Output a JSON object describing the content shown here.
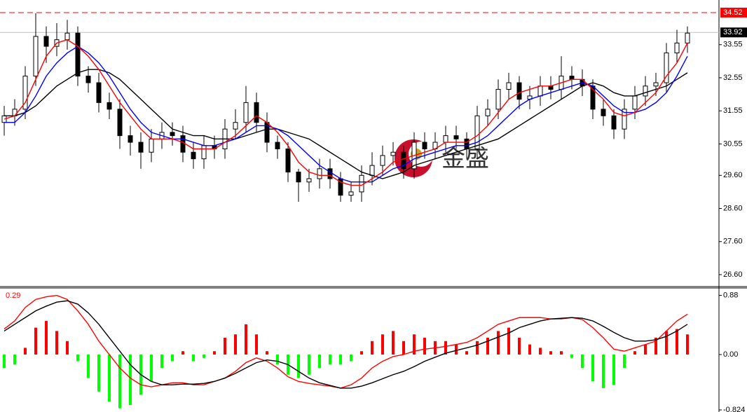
{
  "chart_data": [
    {
      "type": "candlestick",
      "watermark": "金盛",
      "up_color": "#ffffff",
      "down_color": "#000000",
      "outline_color": "#000000",
      "open": [
        31.2,
        31.4,
        31.6,
        32.6,
        33.8,
        33.5,
        33.7,
        33.9,
        32.6,
        32.4,
        31.8,
        31.6,
        30.8,
        30.6,
        30.3,
        30.7,
        30.9,
        30.8,
        30.3,
        30.1,
        30.5,
        30.4,
        31.0,
        31.2,
        31.8,
        31.2,
        30.6,
        30.4,
        29.7,
        29.4,
        29.5,
        29.8,
        29.5,
        29.0,
        29.1,
        29.6,
        29.9,
        30.2,
        30.3,
        29.8,
        30.6,
        30.4,
        30.6,
        30.8,
        30.7,
        30.4,
        31.4,
        31.6,
        32.2,
        32.4,
        31.9,
        32.0,
        32.3,
        32.2,
        32.6,
        32.5,
        32.3,
        31.6,
        31.4,
        31.0,
        31.6,
        32.0,
        32.3,
        32.4,
        33.3,
        33.6
      ],
      "high": [
        31.7,
        31.9,
        32.9,
        34.5,
        34.1,
        34.2,
        34.3,
        34.1,
        32.9,
        32.7,
        32.1,
        31.9,
        31.1,
        30.9,
        31.0,
        31.2,
        31.2,
        31.1,
        30.6,
        30.8,
        30.8,
        31.3,
        31.6,
        32.3,
        32.1,
        31.5,
        30.8,
        30.6,
        29.8,
        29.8,
        30.1,
        30.1,
        29.7,
        29.4,
        29.9,
        30.3,
        30.5,
        30.6,
        30.5,
        30.9,
        30.9,
        30.9,
        31.1,
        31.1,
        30.9,
        31.7,
        31.9,
        32.5,
        32.7,
        32.6,
        32.3,
        32.6,
        32.6,
        33.2,
        32.9,
        32.8,
        32.5,
        31.9,
        31.6,
        31.9,
        32.3,
        32.6,
        32.7,
        33.6,
        34.0,
        34.1
      ],
      "low": [
        30.8,
        31.1,
        31.3,
        32.3,
        33.0,
        33.2,
        33.4,
        32.3,
        32.1,
        31.5,
        31.3,
        30.4,
        30.2,
        29.8,
        30.0,
        30.4,
        30.5,
        30.0,
        29.8,
        29.8,
        30.1,
        30.1,
        30.7,
        30.9,
        30.9,
        30.3,
        30.1,
        29.4,
        28.8,
        29.1,
        29.2,
        29.2,
        28.8,
        28.8,
        28.8,
        29.3,
        29.6,
        29.9,
        29.5,
        29.5,
        30.1,
        30.1,
        30.3,
        30.4,
        30.1,
        30.1,
        31.1,
        31.3,
        31.9,
        31.6,
        31.6,
        31.7,
        31.9,
        31.9,
        32.2,
        32.0,
        31.3,
        31.1,
        30.7,
        30.7,
        31.3,
        31.7,
        32.0,
        32.1,
        33.0,
        33.3
      ],
      "close": [
        31.4,
        31.6,
        32.6,
        33.8,
        33.5,
        33.7,
        33.9,
        32.6,
        32.4,
        31.8,
        31.6,
        30.8,
        30.6,
        30.3,
        30.7,
        30.9,
        30.8,
        30.3,
        30.1,
        30.5,
        30.4,
        31.0,
        31.2,
        31.8,
        31.2,
        30.6,
        30.4,
        29.7,
        29.4,
        29.5,
        29.8,
        29.5,
        29.0,
        29.1,
        29.6,
        29.9,
        30.2,
        30.3,
        29.8,
        30.6,
        30.4,
        30.6,
        30.8,
        30.7,
        30.4,
        31.4,
        31.6,
        32.2,
        32.4,
        31.9,
        32.0,
        32.3,
        32.2,
        32.6,
        32.5,
        32.3,
        31.6,
        31.4,
        31.0,
        31.6,
        32.0,
        32.3,
        32.4,
        33.3,
        33.6,
        33.9
      ],
      "lines": [
        {
          "color": "#000000",
          "values": [
            31.4,
            31.4,
            31.5,
            31.7,
            32.0,
            32.3,
            32.5,
            32.7,
            32.8,
            32.8,
            32.7,
            32.5,
            32.2,
            31.9,
            31.6,
            31.3,
            31.0,
            30.9,
            30.8,
            30.8,
            30.7,
            30.7,
            30.7,
            30.8,
            30.9,
            31.0,
            31.0,
            30.9,
            30.8,
            30.7,
            30.5,
            30.3,
            30.1,
            29.9,
            29.7,
            29.6,
            29.5,
            29.6,
            29.7,
            29.9,
            30.0,
            30.1,
            30.2,
            30.3,
            30.4,
            30.5,
            30.6,
            30.7,
            30.9,
            31.1,
            31.3,
            31.5,
            31.7,
            31.9,
            32.1,
            32.3,
            32.4,
            32.3,
            32.1,
            32.0,
            32.0,
            32.1,
            32.2,
            32.3,
            32.5,
            32.7
          ]
        },
        {
          "color": "#0000ff",
          "values": [
            31.2,
            31.2,
            31.5,
            32.0,
            32.6,
            33.0,
            33.3,
            33.5,
            33.3,
            33.0,
            32.6,
            32.1,
            31.6,
            31.2,
            30.9,
            30.8,
            30.7,
            30.7,
            30.6,
            30.5,
            30.5,
            30.6,
            30.7,
            30.9,
            31.1,
            31.1,
            31.0,
            30.8,
            30.5,
            30.2,
            29.9,
            29.7,
            29.5,
            29.4,
            29.4,
            29.4,
            29.6,
            29.8,
            29.9,
            30.1,
            30.2,
            30.3,
            30.4,
            30.5,
            30.5,
            30.6,
            30.8,
            31.1,
            31.4,
            31.7,
            31.9,
            32.0,
            32.1,
            32.2,
            32.3,
            32.4,
            32.3,
            32.0,
            31.7,
            31.5,
            31.5,
            31.6,
            31.8,
            32.1,
            32.6,
            33.2
          ]
        },
        {
          "color": "#ff0000",
          "values": [
            31.3,
            31.4,
            31.8,
            32.5,
            33.2,
            33.6,
            33.7,
            33.5,
            33.2,
            32.8,
            32.3,
            31.8,
            31.4,
            31.0,
            30.7,
            30.7,
            30.7,
            30.6,
            30.4,
            30.4,
            30.4,
            30.6,
            30.8,
            31.1,
            31.4,
            31.2,
            30.9,
            30.5,
            30.0,
            29.7,
            29.6,
            29.6,
            29.4,
            29.3,
            29.3,
            29.5,
            29.7,
            30.0,
            30.1,
            30.2,
            30.3,
            30.4,
            30.6,
            30.6,
            30.6,
            30.8,
            31.1,
            31.5,
            31.9,
            32.1,
            32.2,
            32.3,
            32.3,
            32.4,
            32.5,
            32.5,
            32.2,
            31.9,
            31.5,
            31.4,
            31.5,
            31.8,
            32.1,
            32.6,
            33.0,
            33.6
          ]
        }
      ],
      "price_lines": [
        {
          "value": 34.52,
          "color": "#ff0000",
          "dashed": true
        },
        {
          "value": 33.92,
          "color": "#c0c0c0",
          "dashed": false
        }
      ],
      "ylim": [
        26.26,
        34.9
      ],
      "yticks": [
        33.55,
        32.55,
        31.55,
        30.55,
        {
          "value": 29.6,
          "label": "29.60"
        },
        {
          "value": 28.6,
          "label": "28.60"
        },
        {
          "value": 27.6,
          "label": "27.60"
        },
        {
          "value": 26.6,
          "label": "26.60"
        }
      ]
    },
    {
      "type": "macd",
      "current_value": 0.29,
      "current_color": "#ff0000",
      "histogram": {
        "up_color": "#ff0000",
        "down_color": "#00ff00",
        "values": [
          -0.2,
          -0.15,
          0.1,
          0.4,
          0.5,
          0.35,
          0.2,
          -0.1,
          -0.35,
          -0.55,
          -0.7,
          -0.8,
          -0.75,
          -0.6,
          -0.4,
          -0.2,
          -0.1,
          0.05,
          -0.1,
          -0.05,
          0.05,
          0.25,
          0.3,
          0.45,
          0.3,
          0.05,
          -0.15,
          -0.3,
          -0.35,
          -0.3,
          -0.2,
          -0.15,
          -0.15,
          -0.1,
          0.05,
          0.2,
          0.3,
          0.35,
          0.2,
          0.3,
          0.25,
          0.2,
          0.2,
          0.15,
          0.05,
          0.2,
          0.25,
          0.35,
          0.4,
          0.25,
          0.15,
          0.1,
          0.05,
          0.05,
          -0.05,
          -0.2,
          -0.4,
          -0.5,
          -0.45,
          -0.2,
          0.05,
          0.15,
          0.25,
          0.35,
          0.38,
          0.3
        ]
      },
      "lines": [
        {
          "color": "#ff0000",
          "values": [
            0.38,
            0.5,
            0.7,
            0.82,
            0.86,
            0.88,
            0.82,
            0.65,
            0.45,
            0.2,
            0.0,
            -0.2,
            -0.35,
            -0.45,
            -0.48,
            -0.45,
            -0.42,
            -0.42,
            -0.45,
            -0.45,
            -0.4,
            -0.35,
            -0.25,
            -0.12,
            -0.05,
            -0.1,
            -0.2,
            -0.33,
            -0.4,
            -0.43,
            -0.45,
            -0.47,
            -0.5,
            -0.45,
            -0.35,
            -0.2,
            -0.1,
            -0.03,
            0.0,
            0.05,
            0.08,
            0.1,
            0.12,
            0.15,
            0.18,
            0.25,
            0.35,
            0.45,
            0.5,
            0.55,
            0.55,
            0.55,
            0.53,
            0.53,
            0.55,
            0.52,
            0.4,
            0.25,
            0.08,
            0.05,
            0.1,
            0.15,
            0.2,
            0.35,
            0.5,
            0.6
          ]
        },
        {
          "color": "#000000",
          "values": [
            0.35,
            0.45,
            0.55,
            0.65,
            0.72,
            0.78,
            0.8,
            0.75,
            0.62,
            0.45,
            0.25,
            0.05,
            -0.15,
            -0.3,
            -0.4,
            -0.45,
            -0.45,
            -0.44,
            -0.44,
            -0.43,
            -0.4,
            -0.35,
            -0.28,
            -0.2,
            -0.12,
            -0.08,
            -0.1,
            -0.15,
            -0.25,
            -0.35,
            -0.42,
            -0.46,
            -0.5,
            -0.5,
            -0.47,
            -0.42,
            -0.36,
            -0.3,
            -0.25,
            -0.18,
            -0.1,
            -0.04,
            0.02,
            0.06,
            0.1,
            0.14,
            0.2,
            0.26,
            0.32,
            0.4,
            0.45,
            0.5,
            0.53,
            0.54,
            0.55,
            0.54,
            0.5,
            0.42,
            0.33,
            0.25,
            0.2,
            0.2,
            0.22,
            0.27,
            0.35,
            0.45
          ]
        }
      ],
      "ylim": [
        -0.855,
        0.98
      ],
      "yticks": [
        0.88,
        {
          "value": 0,
          "label": "0.00"
        },
        -0.824
      ]
    }
  ]
}
